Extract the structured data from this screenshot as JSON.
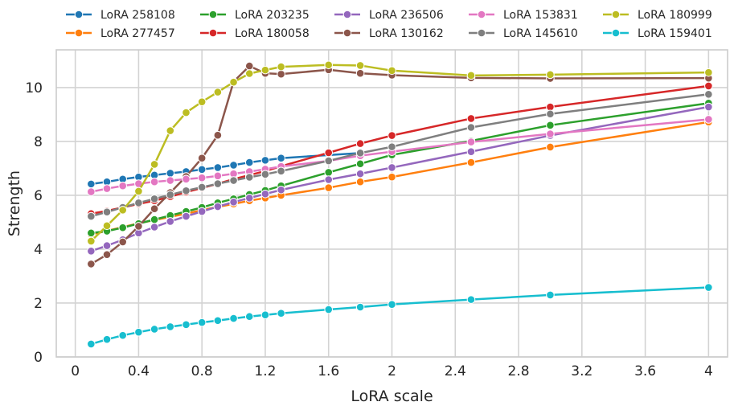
{
  "chart_data": {
    "type": "line",
    "title": "",
    "xlabel": "LoRA scale",
    "ylabel": "Strength",
    "xlim": [
      -0.12,
      4.12
    ],
    "ylim": [
      0,
      11.4
    ],
    "xticks": [
      0,
      0.4,
      0.8,
      1.2,
      1.6,
      2,
      2.4,
      2.8,
      3.2,
      3.6,
      4
    ],
    "xtick_labels": [
      "0",
      "0.4",
      "0.8",
      "1.2",
      "1.6",
      "2",
      "2.4",
      "2.8",
      "3.2",
      "3.6",
      "4"
    ],
    "yticks": [
      0,
      2,
      4,
      6,
      8,
      10
    ],
    "ytick_labels": [
      "0",
      "2",
      "4",
      "6",
      "8",
      "10"
    ],
    "grid": true,
    "legend_position": "top",
    "series": [
      {
        "name": "LoRA 258108",
        "color": "#1f77b4",
        "x": [
          0.1,
          0.2,
          0.3,
          0.4,
          0.5,
          0.6,
          0.7,
          0.8,
          0.9,
          1.0,
          1.1,
          1.2,
          1.3,
          1.8
        ],
        "y": [
          6.42,
          6.5,
          6.6,
          6.68,
          6.75,
          6.82,
          6.88,
          6.96,
          7.03,
          7.12,
          7.22,
          7.3,
          7.38,
          7.57
        ]
      },
      {
        "name": "LoRA 277457",
        "color": "#ff7f0e",
        "x": [
          0.1,
          0.2,
          0.3,
          0.4,
          0.5,
          0.6,
          0.7,
          0.8,
          0.9,
          1.0,
          1.1,
          1.2,
          1.3,
          1.6,
          1.8,
          2.0,
          2.5,
          3.0,
          4.0
        ],
        "y": [
          4.55,
          4.68,
          4.82,
          4.96,
          5.08,
          5.2,
          5.32,
          5.45,
          5.57,
          5.68,
          5.8,
          5.9,
          6.0,
          6.28,
          6.5,
          6.68,
          7.22,
          7.79,
          8.72
        ]
      },
      {
        "name": "LoRA 203235",
        "color": "#2ca02c",
        "x": [
          0.1,
          0.2,
          0.3,
          0.4,
          0.5,
          0.6,
          0.7,
          0.8,
          0.9,
          1.0,
          1.1,
          1.2,
          1.3,
          1.6,
          1.8,
          2.0,
          2.5,
          3.0,
          4.0
        ],
        "y": [
          4.6,
          4.67,
          4.8,
          4.95,
          5.1,
          5.25,
          5.4,
          5.55,
          5.72,
          5.87,
          6.03,
          6.18,
          6.35,
          6.85,
          7.17,
          7.5,
          8.02,
          8.6,
          9.42
        ]
      },
      {
        "name": "LoRA 180058",
        "color": "#d62728",
        "x": [
          0.1,
          0.2,
          0.3,
          0.4,
          0.5,
          0.6,
          0.7,
          0.8,
          0.9,
          1.0,
          1.1,
          1.2,
          1.3,
          1.6,
          1.8,
          2.0,
          2.5,
          3.0,
          4.0
        ],
        "y": [
          5.32,
          5.42,
          5.55,
          5.68,
          5.8,
          5.95,
          6.12,
          6.27,
          6.43,
          6.6,
          6.75,
          6.9,
          7.08,
          7.58,
          7.92,
          8.22,
          8.85,
          9.28,
          10.06
        ]
      },
      {
        "name": "LoRA 236506",
        "color": "#9467bd",
        "x": [
          0.1,
          0.2,
          0.3,
          0.4,
          0.5,
          0.6,
          0.7,
          0.8,
          0.9,
          1.0,
          1.1,
          1.2,
          1.3,
          1.6,
          1.8,
          2.0,
          2.5,
          3.0,
          4.0
        ],
        "y": [
          3.93,
          4.13,
          4.35,
          4.6,
          4.82,
          5.03,
          5.22,
          5.4,
          5.58,
          5.75,
          5.9,
          6.05,
          6.2,
          6.58,
          6.8,
          7.03,
          7.62,
          8.22,
          9.28
        ]
      },
      {
        "name": "LoRA 130162",
        "color": "#8c564b",
        "x": [
          0.1,
          0.2,
          0.3,
          0.4,
          0.5,
          0.6,
          0.7,
          0.8,
          0.9,
          1.0,
          1.1,
          1.2,
          1.3,
          1.6,
          1.8,
          2.0,
          2.5,
          3.0,
          4.0
        ],
        "y": [
          3.45,
          3.8,
          4.27,
          4.85,
          5.5,
          6.1,
          6.7,
          7.38,
          8.23,
          10.22,
          10.8,
          10.53,
          10.5,
          10.66,
          10.53,
          10.46,
          10.36,
          10.34,
          10.35
        ]
      },
      {
        "name": "LoRA 153831",
        "color": "#e377c2",
        "x": [
          0.1,
          0.2,
          0.3,
          0.4,
          0.5,
          0.6,
          0.7,
          0.8,
          0.9,
          1.0,
          1.1,
          1.2,
          1.3,
          1.6,
          1.8,
          2.0,
          2.5,
          3.0,
          4.0
        ],
        "y": [
          6.13,
          6.25,
          6.35,
          6.43,
          6.5,
          6.55,
          6.6,
          6.65,
          6.72,
          6.8,
          6.88,
          6.97,
          7.07,
          7.28,
          7.47,
          7.62,
          7.98,
          8.28,
          8.82
        ]
      },
      {
        "name": "LoRA 145610",
        "color": "#7f7f7f",
        "x": [
          0.1,
          0.2,
          0.3,
          0.4,
          0.5,
          0.6,
          0.7,
          0.8,
          0.9,
          1.0,
          1.1,
          1.2,
          1.3,
          1.6,
          1.8,
          2.0,
          2.5,
          3.0,
          4.0
        ],
        "y": [
          5.22,
          5.38,
          5.55,
          5.72,
          5.87,
          6.02,
          6.17,
          6.3,
          6.43,
          6.55,
          6.67,
          6.78,
          6.9,
          7.28,
          7.57,
          7.8,
          8.52,
          9.02,
          9.75
        ]
      },
      {
        "name": "LoRA 180999",
        "color": "#bcbd22",
        "x": [
          0.1,
          0.2,
          0.3,
          0.4,
          0.5,
          0.6,
          0.7,
          0.8,
          0.9,
          1.0,
          1.1,
          1.2,
          1.3,
          1.6,
          1.8,
          2.0,
          2.5,
          3.0,
          4.0
        ],
        "y": [
          4.3,
          4.87,
          5.45,
          6.15,
          7.15,
          8.4,
          9.07,
          9.47,
          9.83,
          10.2,
          10.52,
          10.65,
          10.77,
          10.84,
          10.82,
          10.63,
          10.45,
          10.48,
          10.56
        ]
      },
      {
        "name": "LoRA 159401",
        "color": "#17becf",
        "x": [
          0.1,
          0.2,
          0.3,
          0.4,
          0.5,
          0.6,
          0.7,
          0.8,
          0.9,
          1.0,
          1.1,
          1.2,
          1.3,
          1.6,
          1.8,
          2.0,
          2.5,
          3.0,
          4.0
        ],
        "y": [
          0.48,
          0.65,
          0.8,
          0.92,
          1.03,
          1.12,
          1.2,
          1.28,
          1.35,
          1.43,
          1.5,
          1.56,
          1.62,
          1.76,
          1.85,
          1.95,
          2.13,
          2.3,
          2.58
        ]
      }
    ]
  }
}
